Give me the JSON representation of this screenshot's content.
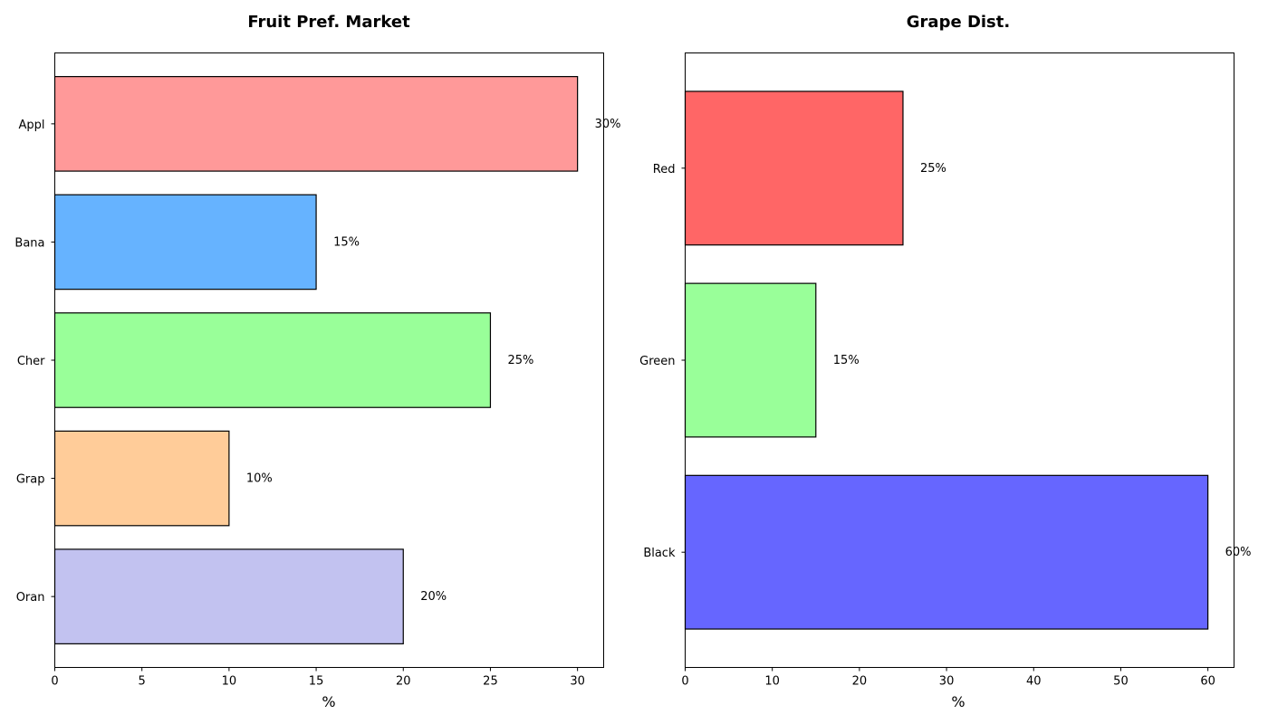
{
  "chart_data": [
    {
      "type": "bar",
      "orientation": "horizontal",
      "title": "Fruit Pref. Market",
      "xlabel": "%",
      "ylabel": "",
      "categories": [
        "Appl",
        "Bana",
        "Cher",
        "Grap",
        "Oran"
      ],
      "values": [
        30,
        15,
        25,
        10,
        20
      ],
      "data_labels": [
        "30%",
        "15%",
        "25%",
        "10%",
        "20%"
      ],
      "colors": [
        "#ff9999",
        "#66b3ff",
        "#99ff99",
        "#ffcc99",
        "#c2c2f0"
      ],
      "xlim": [
        0,
        31.5
      ],
      "xticks": [
        0,
        5,
        10,
        15,
        20,
        25,
        30
      ],
      "grid": false,
      "legend": "none"
    },
    {
      "type": "bar",
      "orientation": "horizontal",
      "title": "Grape Dist.",
      "xlabel": "%",
      "ylabel": "",
      "categories": [
        "Red",
        "Green",
        "Black"
      ],
      "values": [
        25,
        15,
        60
      ],
      "data_labels": [
        "25%",
        "15%",
        "60%"
      ],
      "colors": [
        "#ff6666",
        "#99ff99",
        "#6666ff"
      ],
      "xlim": [
        0,
        63
      ],
      "xticks": [
        0,
        10,
        20,
        30,
        40,
        50,
        60
      ],
      "grid": false,
      "legend": "none"
    }
  ]
}
